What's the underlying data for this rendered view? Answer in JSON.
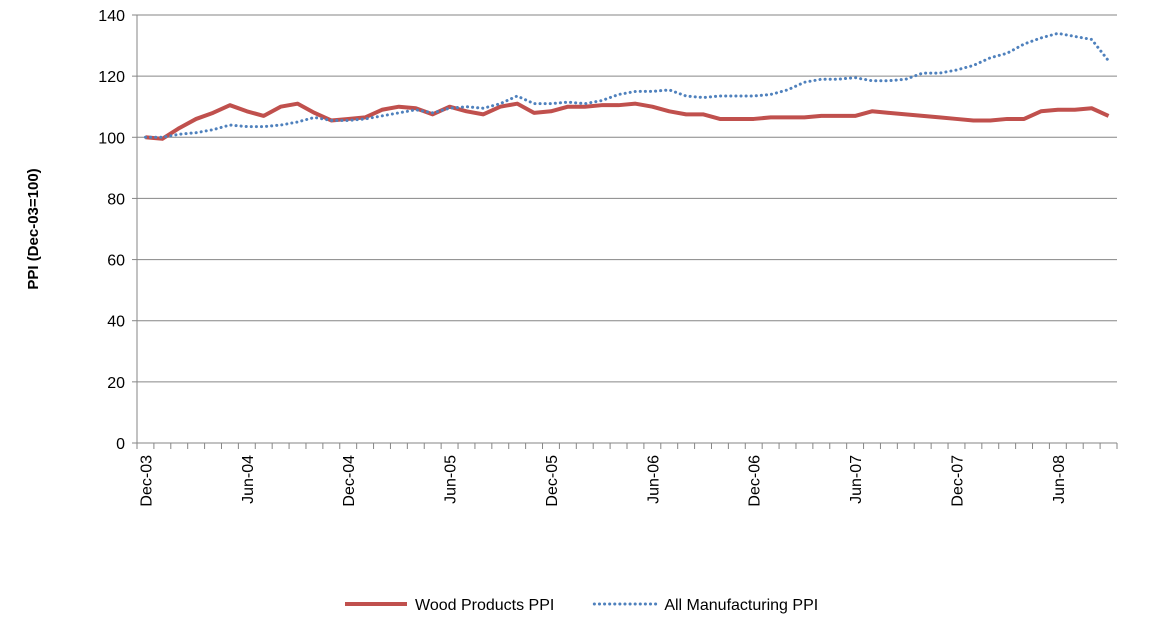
{
  "chart_data": {
    "type": "line",
    "y_label": "PPI (Dec-03=100)",
    "categories": [
      "Dec-03",
      null,
      null,
      null,
      null,
      null,
      "Jun-04",
      null,
      null,
      null,
      null,
      null,
      "Dec-04",
      null,
      null,
      null,
      null,
      null,
      "Jun-05",
      null,
      null,
      null,
      null,
      null,
      "Dec-05",
      null,
      null,
      null,
      null,
      null,
      "Jun-06",
      null,
      null,
      null,
      null,
      null,
      "Dec-06",
      null,
      null,
      null,
      null,
      null,
      "Jun-07",
      null,
      null,
      null,
      null,
      null,
      "Dec-07",
      null,
      null,
      null,
      null,
      null,
      "Jun-08",
      null,
      null,
      null
    ],
    "series": [
      {
        "name": "Wood Products PPI",
        "color": "#c0504d",
        "style": "solid",
        "values": [
          100,
          99.5,
          103,
          106,
          108,
          110.5,
          108.5,
          107,
          110,
          111,
          108,
          105.5,
          106,
          106.5,
          109,
          110,
          109.5,
          107.5,
          110,
          108.5,
          107.5,
          110,
          111,
          108,
          108.5,
          110,
          110,
          110.5,
          110.5,
          111,
          110,
          108.5,
          107.5,
          107.5,
          106,
          106,
          106,
          106.5,
          106.5,
          106.5,
          107,
          107,
          107,
          108.5,
          108,
          107.5,
          107,
          106.5,
          106,
          105.5,
          105.5,
          106,
          106,
          108.5,
          109,
          109,
          109.5,
          107
        ]
      },
      {
        "name": "All Manufacturing PPI",
        "color": "#4f81bd",
        "style": "dotted",
        "values": [
          100,
          100,
          101,
          101.5,
          102.5,
          104,
          103.5,
          103.5,
          104,
          105,
          106.5,
          105.5,
          105.5,
          106,
          107,
          108,
          109,
          108,
          109.5,
          110,
          109.5,
          111,
          113.5,
          111,
          111,
          111.5,
          111,
          112,
          114,
          115,
          115,
          115.5,
          113.5,
          113,
          113.5,
          113.5,
          113.5,
          114,
          115.5,
          118,
          119,
          119,
          119.5,
          118.5,
          118.5,
          119,
          121,
          121,
          122,
          123.5,
          126,
          127.5,
          130.5,
          132.5,
          134,
          133,
          132,
          125
        ]
      }
    ],
    "ylim": [
      0,
      140
    ],
    "yticks": [
      0,
      20,
      40,
      60,
      80,
      100,
      120,
      140
    ],
    "grid": true,
    "legend": "bottom"
  }
}
